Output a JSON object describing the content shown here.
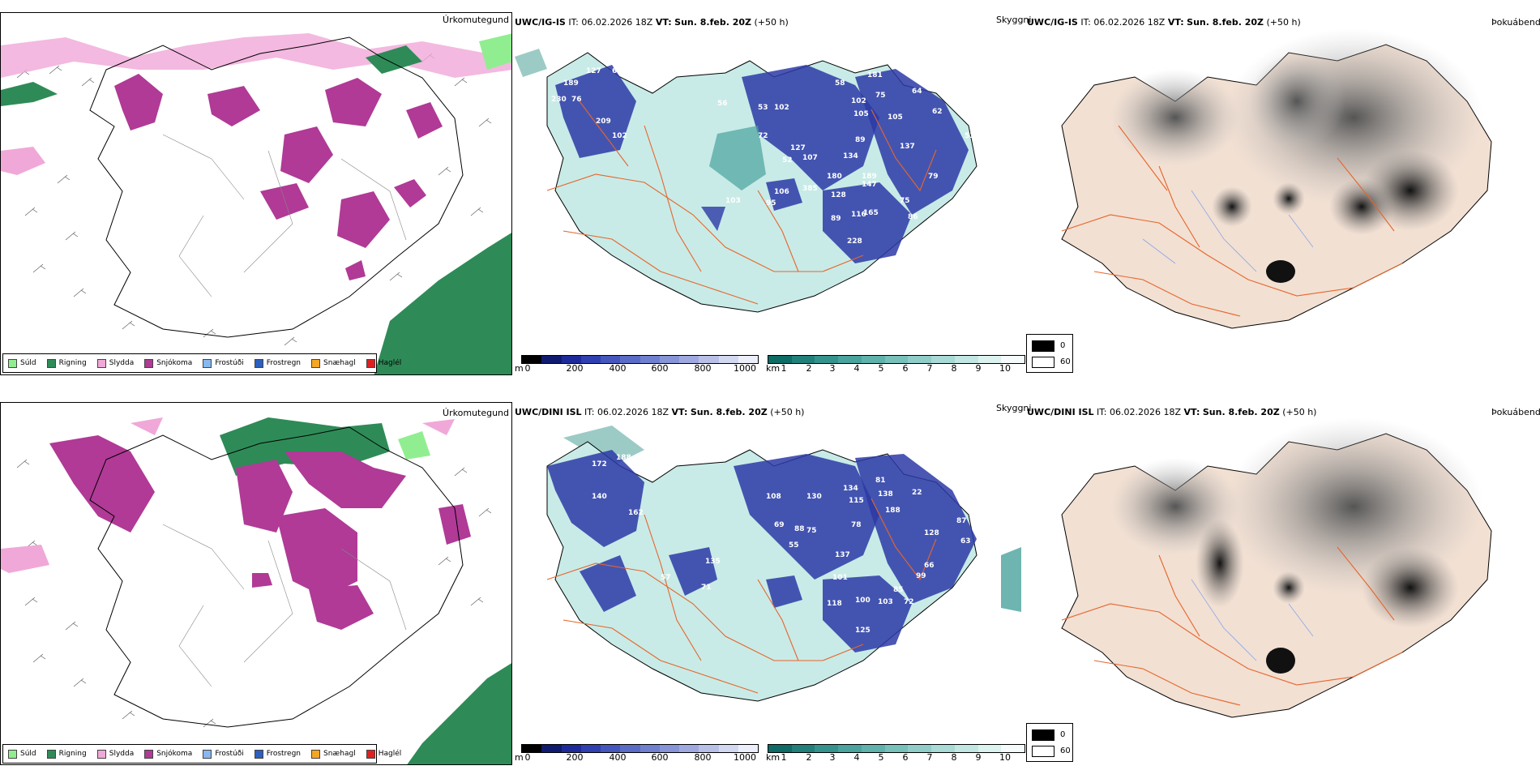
{
  "rows": [
    {
      "model": "UWC/IG-IS",
      "it_label": "IT:",
      "it_value": "06.02.2026 18Z",
      "vt_label": "VT:",
      "vt_value": "Sun. 8.feb. 20Z",
      "lead": "(+50 h)"
    },
    {
      "model": "UWC/DINI ISL",
      "it_label": "IT:",
      "it_value": "06.02.2026 18Z",
      "vt_label": "VT:",
      "vt_value": "Sun. 8.feb. 20Z",
      "lead": "(+50 h)"
    }
  ],
  "panel_titles": {
    "precip_type": "Úrkomutegund",
    "visibility": "Skyggni",
    "fog": "Þokuábendi"
  },
  "precip_legend": [
    {
      "label": "Súld",
      "color": "#90ee90"
    },
    {
      "label": "Rigning",
      "color": "#2e8b57"
    },
    {
      "label": "Slydda",
      "color": "#f0a8d8"
    },
    {
      "label": "Snjókoma",
      "color": "#b03a96"
    },
    {
      "label": "Frostúði",
      "color": "#87b8ef"
    },
    {
      "label": "Frostregn",
      "color": "#2c5fbf"
    },
    {
      "label": "Snæhagl",
      "color": "#f5a623"
    },
    {
      "label": "Haglél",
      "color": "#e02020"
    }
  ],
  "height_scale": {
    "unit": "m",
    "ticks": [
      "0",
      "200",
      "400",
      "600",
      "800",
      "1000"
    ],
    "colors": [
      "#000000",
      "#101a6e",
      "#1f2a9a",
      "#3040b0",
      "#4556bd",
      "#5a6cc6",
      "#7080cf",
      "#8794d7",
      "#a0a9df",
      "#b9c0e8",
      "#d3d8f1",
      "#eceffa"
    ]
  },
  "vis_scale": {
    "unit": "km",
    "ticks": [
      "1",
      "2",
      "3",
      "4",
      "5",
      "6",
      "7",
      "8",
      "9",
      "10"
    ],
    "colors": [
      "#0e6b65",
      "#21807a",
      "#35938d",
      "#4aa39d",
      "#60b2ac",
      "#78c0ba",
      "#90cdc8",
      "#a9dad5",
      "#c2e6e2",
      "#dcf2ef",
      "#f4fbfa"
    ]
  },
  "fog_scale": {
    "top_label": "0",
    "bottom_label": "60",
    "top_color": "#000000",
    "bottom_color": "#ffffff"
  },
  "cloud_height_labels": {
    "top": [
      "127",
      "62",
      "189",
      "230",
      "76",
      "209",
      "102",
      "56",
      "53",
      "102",
      "72",
      "127",
      "107",
      "52",
      "58",
      "181",
      "102",
      "105",
      "75",
      "105",
      "64",
      "89",
      "137",
      "134",
      "180",
      "189",
      "147",
      "385",
      "106",
      "95",
      "103",
      "128",
      "89",
      "116",
      "165",
      "75",
      "86",
      "79",
      "228",
      "53",
      "62"
    ],
    "bottom": [
      "172",
      "188",
      "19",
      "140",
      "162",
      "57",
      "135",
      "71",
      "108",
      "69",
      "88",
      "75",
      "55",
      "130",
      "134",
      "115",
      "81",
      "138",
      "188",
      "22",
      "78",
      "137",
      "101",
      "118",
      "100",
      "103",
      "85",
      "72",
      "125",
      "99",
      "128",
      "87",
      "63",
      "66"
    ]
  },
  "colors": {
    "land_beige": "#f2e0d3",
    "road_orange": "#e7652a",
    "river_blue": "#8aa7e6",
    "coast": "#000000"
  }
}
